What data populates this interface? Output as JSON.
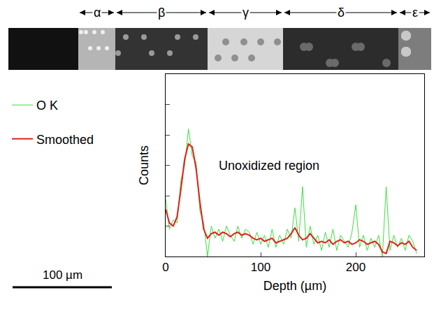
{
  "chart_data": {
    "type": "line",
    "x_label": "Depth (µm)",
    "y_label": "Counts",
    "x": [
      0,
      4,
      8,
      12,
      16,
      20,
      24,
      28,
      32,
      36,
      40,
      44,
      48,
      52,
      56,
      60,
      64,
      68,
      72,
      76,
      80,
      84,
      88,
      92,
      96,
      100,
      104,
      108,
      112,
      116,
      120,
      124,
      128,
      132,
      136,
      140,
      144,
      148,
      152,
      156,
      160,
      164,
      168,
      172,
      176,
      180,
      184,
      188,
      192,
      196,
      200,
      204,
      208,
      212,
      216,
      220,
      224,
      228,
      232,
      236,
      240,
      244,
      248,
      252,
      256,
      260,
      264
    ],
    "series": [
      {
        "name": "O K",
        "color": "#3ee03e",
        "values": [
          1.9,
          0.9,
          1.2,
          1.1,
          2.5,
          3.0,
          4.2,
          3.3,
          3.1,
          1.5,
          1.1,
          0.0,
          1.0,
          0.6,
          0.9,
          0.5,
          1.0,
          0.7,
          0.5,
          1.0,
          0.6,
          0.9,
          0.8,
          0.4,
          0.8,
          0.4,
          0.7,
          0.3,
          0.9,
          0.3,
          0.7,
          0.4,
          0.9,
          0.6,
          1.6,
          0.5,
          2.3,
          0.3,
          1.0,
          0.4,
          0.7,
          0.2,
          0.8,
          0.3,
          0.9,
          0.2,
          0.7,
          0.5,
          0.3,
          0.8,
          1.7,
          0.3,
          0.7,
          0.2,
          0.6,
          0.3,
          0.7,
          0.0,
          2.3,
          0.2,
          0.7,
          0.3,
          0.6,
          0.2,
          0.7,
          0.5,
          0.1
        ]
      },
      {
        "name": "Smoothed",
        "color": "#e0201b",
        "values": [
          1.55,
          1.1,
          1.0,
          1.3,
          2.2,
          3.2,
          3.7,
          3.6,
          2.9,
          1.8,
          0.9,
          0.6,
          0.75,
          0.8,
          0.7,
          0.8,
          0.75,
          0.65,
          0.75,
          0.8,
          0.7,
          0.75,
          0.7,
          0.6,
          0.55,
          0.6,
          0.5,
          0.55,
          0.6,
          0.45,
          0.5,
          0.55,
          0.6,
          0.75,
          0.95,
          0.7,
          0.55,
          0.6,
          0.75,
          0.6,
          0.45,
          0.5,
          0.45,
          0.55,
          0.4,
          0.5,
          0.55,
          0.45,
          0.5,
          0.4,
          0.45,
          0.55,
          0.5,
          0.4,
          0.45,
          0.5,
          0.4,
          0.15,
          0.1,
          0.5,
          0.45,
          0.35,
          0.45,
          0.4,
          0.5,
          0.3,
          0.2
        ]
      }
    ],
    "xlim": [
      0,
      272
    ],
    "xticks": [
      0,
      100,
      200
    ],
    "ylim": [
      0,
      6
    ],
    "yticks": [
      0,
      1,
      2,
      3,
      4,
      5,
      6
    ],
    "tick_labels": "x",
    "legend": "left",
    "annotations": [
      {
        "text": "Unoxidized region",
        "x": 109,
        "y": 3.0
      }
    ],
    "regions": [
      "α",
      "β",
      "γ",
      "δ",
      "ε"
    ],
    "scale_bar": "100 µm"
  }
}
